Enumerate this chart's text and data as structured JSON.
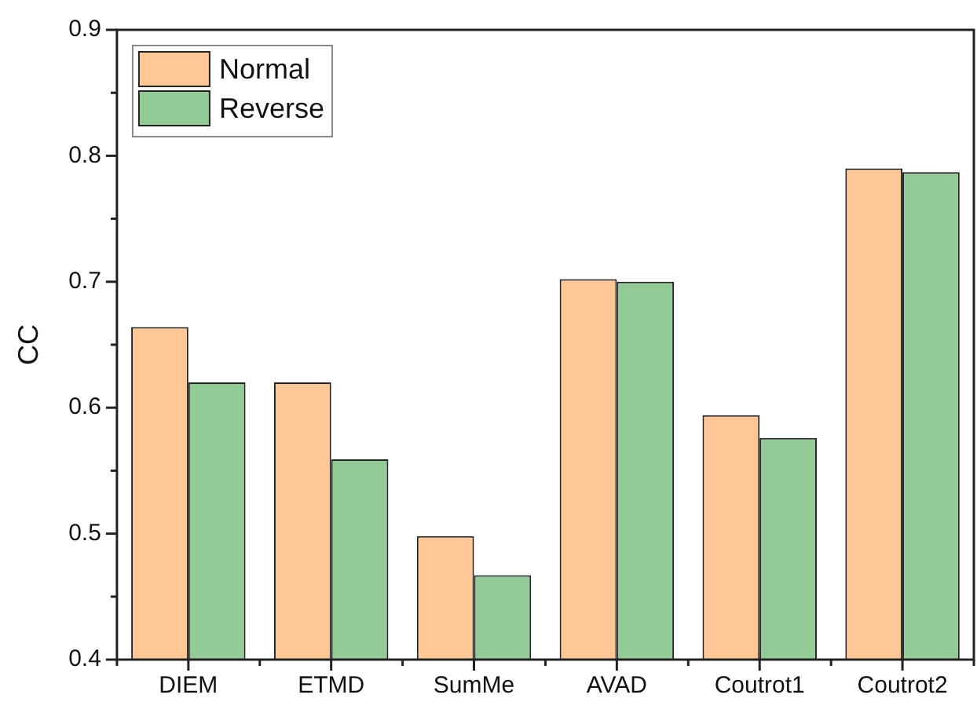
{
  "chart_data": {
    "type": "bar",
    "categories": [
      "DIEM",
      "ETMD",
      "SumMe",
      "AVAD",
      "Coutrot1",
      "Coutrot2"
    ],
    "ylabel": "CC",
    "ylim": [
      0.4,
      0.9
    ],
    "yticks": [
      0.4,
      {
        "value": 0.45,
        "label": null
      },
      0.5,
      {
        "value": 0.55,
        "label": null
      },
      0.6,
      {
        "value": 0.65,
        "label": null
      },
      0.7,
      {
        "value": 0.75,
        "label": null
      },
      0.8,
      {
        "value": 0.85,
        "label": null
      },
      0.9
    ],
    "series": [
      {
        "name": "Normal",
        "color": "#fec795",
        "values": [
          0.664,
          0.62,
          0.498,
          0.702,
          0.594,
          0.79
        ]
      },
      {
        "name": "Reverse",
        "color": "#93cb96",
        "values": [
          0.62,
          0.559,
          0.467,
          0.7,
          0.576,
          0.787
        ]
      }
    ],
    "legend": "top left",
    "grid": false
  }
}
